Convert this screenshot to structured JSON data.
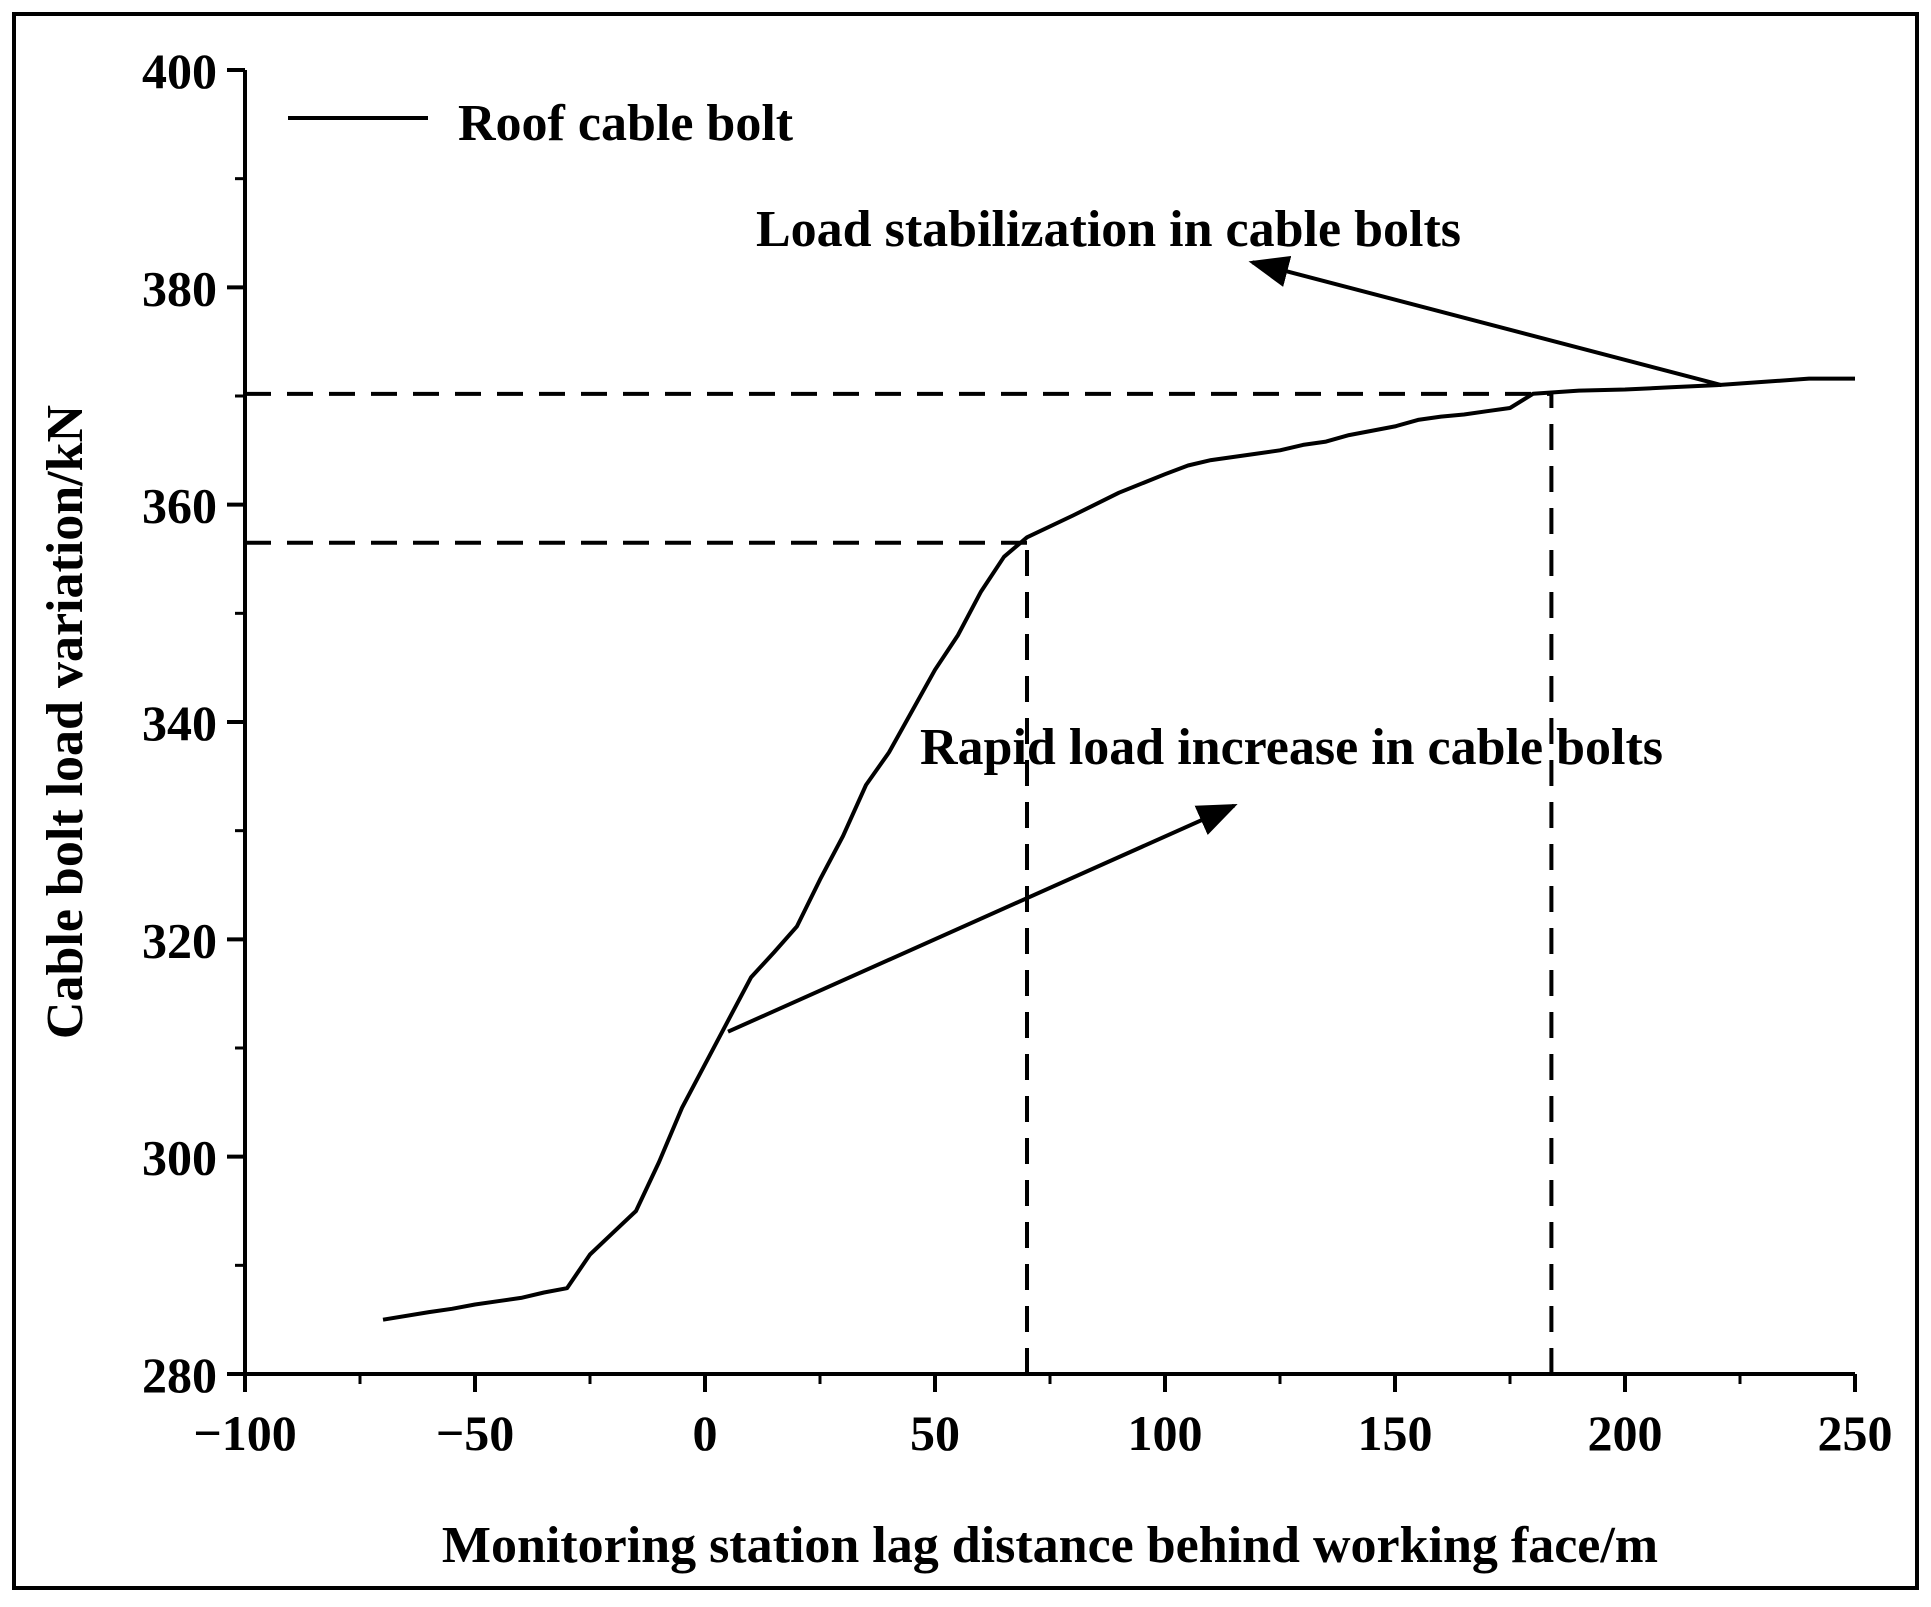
{
  "chart_data": {
    "type": "line",
    "title": "",
    "xlabel": "Monitoring station lag distance behind working face/m",
    "ylabel": "Cable bolt load variation/kN",
    "xlim": [
      -100,
      250
    ],
    "ylim": [
      280,
      400
    ],
    "xticks": [
      -100,
      -50,
      0,
      50,
      100,
      150,
      200,
      250
    ],
    "yticks": [
      280,
      300,
      320,
      340,
      360,
      380,
      400
    ],
    "xtick_labels": [
      "−100",
      "−50",
      "0",
      "50",
      "100",
      "150",
      "200",
      "250"
    ],
    "ytick_labels": [
      "280",
      "300",
      "320",
      "340",
      "360",
      "380",
      "400"
    ],
    "legend": {
      "position": "top-left",
      "entries": [
        "Roof cable bolt"
      ]
    },
    "grid": false,
    "series": [
      {
        "name": "Roof cable bolt",
        "x": [
          -70,
          -60,
          -55,
          -50,
          -45,
          -40,
          -35,
          -30,
          -25,
          -20,
          -15,
          -10,
          -5,
          0,
          5,
          10,
          15,
          20,
          25,
          30,
          35,
          40,
          45,
          50,
          55,
          60,
          65,
          70,
          80,
          90,
          100,
          105,
          110,
          120,
          125,
          130,
          135,
          140,
          150,
          155,
          160,
          165,
          170,
          175,
          180,
          190,
          200,
          210,
          220,
          230,
          240,
          245,
          250
        ],
        "y": [
          285,
          285.7,
          286.0,
          286.4,
          286.7,
          287.0,
          287.5,
          287.9,
          291,
          293,
          295,
          299.5,
          304.5,
          308.5,
          312.5,
          316.5,
          318.8,
          321.2,
          325.5,
          329.5,
          334.2,
          337.2,
          341.0,
          344.8,
          348.0,
          352.0,
          355.2,
          357.0,
          359.0,
          361.1,
          362.8,
          363.6,
          364.1,
          364.7,
          365.0,
          365.5,
          365.8,
          366.4,
          367.2,
          367.8,
          368.1,
          368.3,
          368.6,
          368.9,
          370.2,
          370.5,
          370.6,
          370.8,
          371.0,
          371.3,
          371.6,
          371.6,
          371.6
        ]
      }
    ],
    "reference_lines": [
      {
        "kind": "horizontal",
        "y": 370.2,
        "x_from": -100,
        "x_to": 184,
        "style": "dashed"
      },
      {
        "kind": "horizontal",
        "y": 356.5,
        "x_from": -100,
        "x_to": 70,
        "style": "dashed"
      },
      {
        "kind": "vertical",
        "x": 70,
        "y_from": 280,
        "y_to": 357.0,
        "style": "dashed"
      },
      {
        "kind": "vertical",
        "x": 184,
        "y_from": 280,
        "y_to": 370.2,
        "style": "dashed"
      }
    ],
    "annotations": [
      {
        "text": "Load stabilization in cable bolts",
        "arrow_from": [
          221,
          371
        ],
        "arrow_to": [
          119,
          382.3
        ]
      },
      {
        "text": "Rapid load increase in cable bolts",
        "arrow_from": [
          5,
          311.5
        ],
        "arrow_to": [
          115,
          332.3
        ]
      }
    ],
    "colors": {
      "line": "#000000",
      "background": "#ffffff"
    }
  }
}
